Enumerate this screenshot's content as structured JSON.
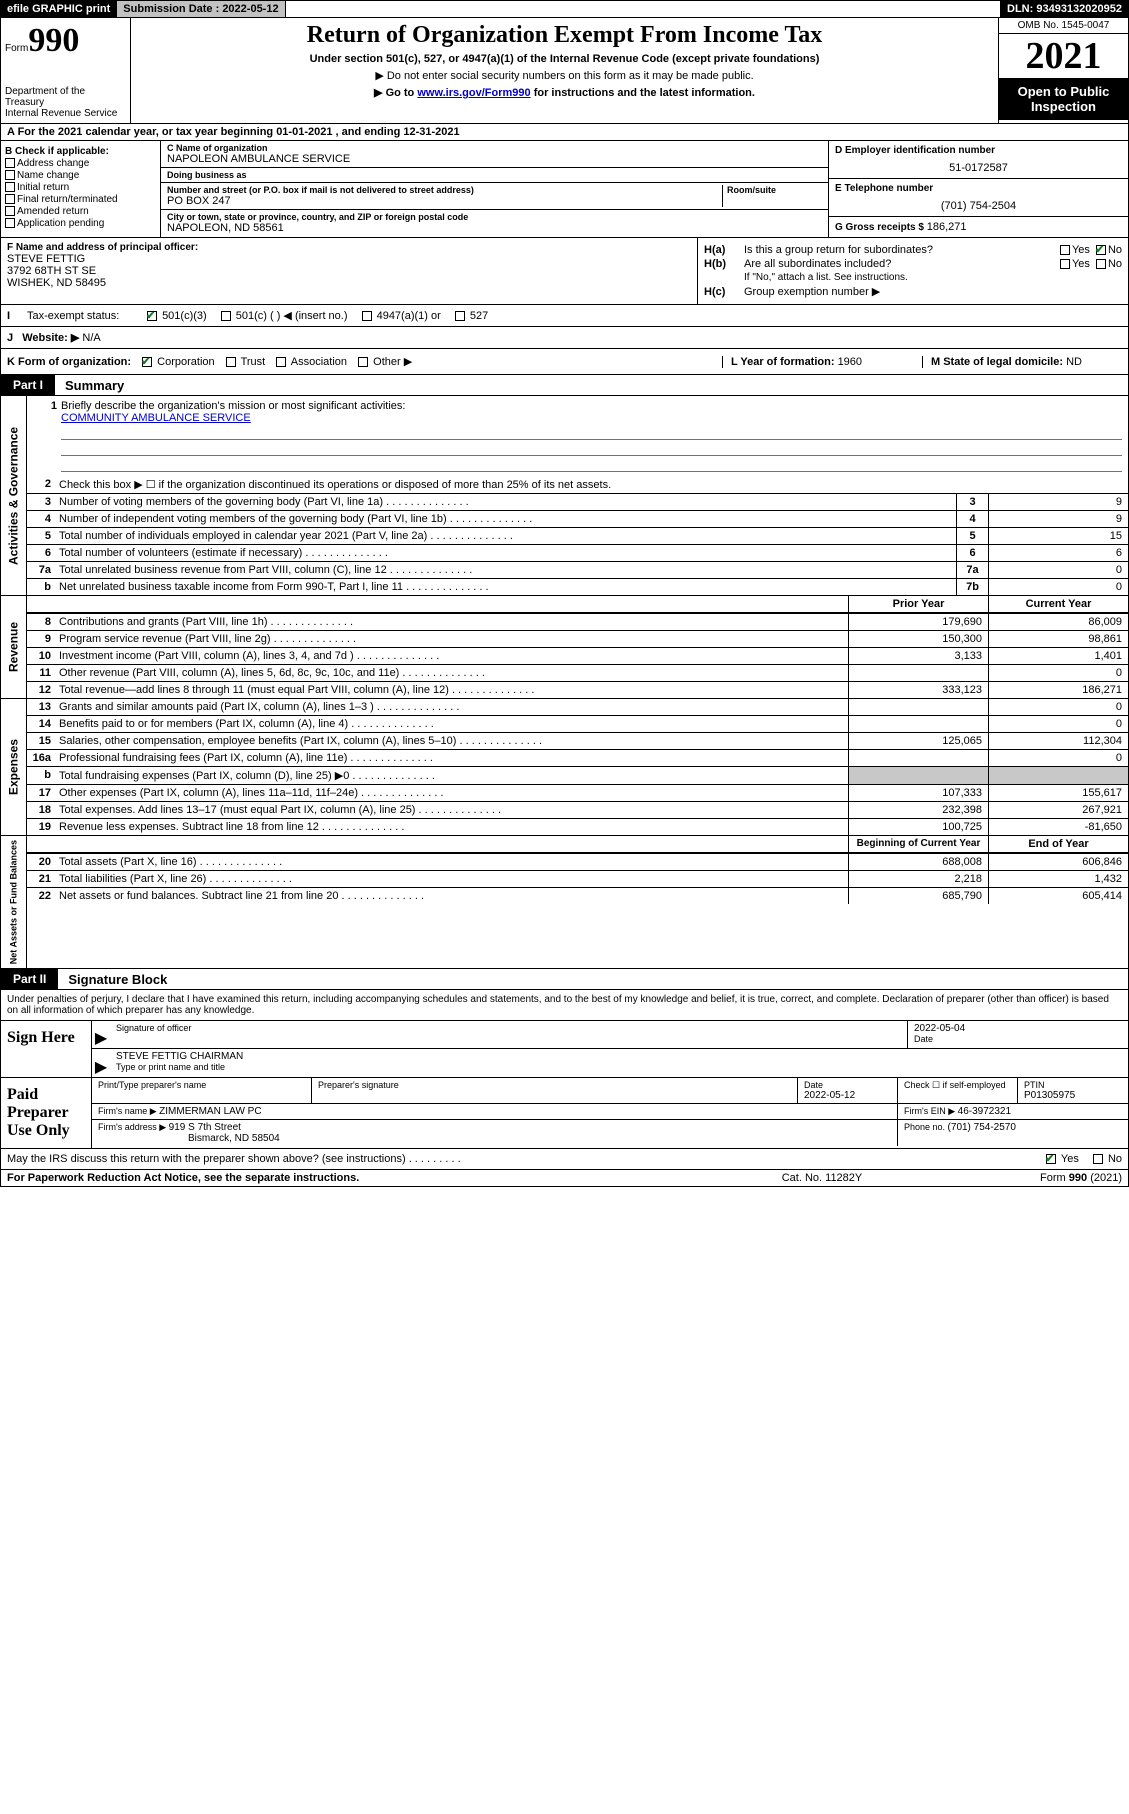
{
  "topbar": {
    "efile": "efile GRAPHIC print",
    "submission_label": "Submission Date : 2022-05-12",
    "dln_label": "DLN: 93493132020952"
  },
  "header": {
    "form_word": "Form",
    "form_num": "990",
    "dept": "Department of the Treasury\nInternal Revenue Service",
    "title": "Return of Organization Exempt From Income Tax",
    "sub1": "Under section 501(c), 527, or 4947(a)(1) of the Internal Revenue Code (except private foundations)",
    "sub2": "▶ Do not enter social security numbers on this form as it may be made public.",
    "sub3_pre": "▶ Go to ",
    "sub3_link": "www.irs.gov/Form990",
    "sub3_post": " for instructions and the latest information.",
    "omb": "OMB No. 1545-0047",
    "year": "2021",
    "inspection": "Open to Public Inspection"
  },
  "line_a": "A For the 2021 calendar year, or tax year beginning 01-01-2021   , and ending 12-31-2021",
  "col_b": {
    "hdr": "B Check if applicable:",
    "items": [
      "Address change",
      "Name change",
      "Initial return",
      "Final return/terminated",
      "Amended return",
      "Application pending"
    ]
  },
  "col_c": {
    "name_lbl": "C Name of organization",
    "name": "NAPOLEON AMBULANCE SERVICE",
    "dba_lbl": "Doing business as",
    "dba": "",
    "addr_lbl": "Number and street (or P.O. box if mail is not delivered to street address)",
    "room_lbl": "Room/suite",
    "addr": "PO BOX 247",
    "city_lbl": "City or town, state or province, country, and ZIP or foreign postal code",
    "city": "NAPOLEON, ND  58561"
  },
  "col_de": {
    "d_lbl": "D Employer identification number",
    "d_val": "51-0172587",
    "e_lbl": "E Telephone number",
    "e_val": "(701) 754-2504",
    "g_lbl": "G Gross receipts $ ",
    "g_val": "186,271"
  },
  "row_f": {
    "lbl": "F  Name and address of principal officer:",
    "name": "STEVE FETTIG",
    "addr1": "3792 68TH ST SE",
    "addr2": "WISHEK, ND  58495"
  },
  "row_h": {
    "ha": "Is this a group return for subordinates?",
    "hb": "Are all subordinates included?",
    "hb_note": "If \"No,\" attach a list. See instructions.",
    "hc": "Group exemption number ▶",
    "yes": "Yes",
    "no": "No"
  },
  "row_i": {
    "lbl": "Tax-exempt status:",
    "opts": [
      "501(c)(3)",
      "501(c) (  ) ◀ (insert no.)",
      "4947(a)(1) or",
      "527"
    ]
  },
  "row_j": {
    "lbl": "Website: ▶ ",
    "val": "N/A"
  },
  "row_k": {
    "lbl": "K Form of organization:",
    "opts": [
      "Corporation",
      "Trust",
      "Association",
      "Other ▶"
    ],
    "l_lbl": "L Year of formation: ",
    "l_val": "1960",
    "m_lbl": "M State of legal domicile: ",
    "m_val": "ND"
  },
  "part1": {
    "tab": "Part I",
    "title": "Summary"
  },
  "mission": {
    "num": "1",
    "lbl": "Briefly describe the organization's mission or most significant activities:",
    "val": "COMMUNITY AMBULANCE SERVICE"
  },
  "gov": {
    "label": "Activities & Governance",
    "lines": [
      {
        "n": "2",
        "t": "Check this box ▶ ☐  if the organization discontinued its operations or disposed of more than 25% of its net assets."
      },
      {
        "n": "3",
        "t": "Number of voting members of the governing body (Part VI, line 1a)",
        "box": "3",
        "v": "9"
      },
      {
        "n": "4",
        "t": "Number of independent voting members of the governing body (Part VI, line 1b)",
        "box": "4",
        "v": "9"
      },
      {
        "n": "5",
        "t": "Total number of individuals employed in calendar year 2021 (Part V, line 2a)",
        "box": "5",
        "v": "15"
      },
      {
        "n": "6",
        "t": "Total number of volunteers (estimate if necessary)",
        "box": "6",
        "v": "6"
      },
      {
        "n": "7a",
        "t": "Total unrelated business revenue from Part VIII, column (C), line 12",
        "box": "7a",
        "v": "0"
      },
      {
        "n": "b",
        "t": "Net unrelated business taxable income from Form 990-T, Part I, line 11",
        "box": "7b",
        "v": "0"
      }
    ]
  },
  "two_col_hdr": {
    "prior": "Prior Year",
    "current": "Current Year"
  },
  "rev": {
    "label": "Revenue",
    "lines": [
      {
        "n": "8",
        "t": "Contributions and grants (Part VIII, line 1h)",
        "p": "179,690",
        "c": "86,009"
      },
      {
        "n": "9",
        "t": "Program service revenue (Part VIII, line 2g)",
        "p": "150,300",
        "c": "98,861"
      },
      {
        "n": "10",
        "t": "Investment income (Part VIII, column (A), lines 3, 4, and 7d )",
        "p": "3,133",
        "c": "1,401"
      },
      {
        "n": "11",
        "t": "Other revenue (Part VIII, column (A), lines 5, 6d, 8c, 9c, 10c, and 11e)",
        "p": "",
        "c": "0"
      },
      {
        "n": "12",
        "t": "Total revenue—add lines 8 through 11 (must equal Part VIII, column (A), line 12)",
        "p": "333,123",
        "c": "186,271"
      }
    ]
  },
  "exp": {
    "label": "Expenses",
    "lines": [
      {
        "n": "13",
        "t": "Grants and similar amounts paid (Part IX, column (A), lines 1–3 )",
        "p": "",
        "c": "0"
      },
      {
        "n": "14",
        "t": "Benefits paid to or for members (Part IX, column (A), line 4)",
        "p": "",
        "c": "0"
      },
      {
        "n": "15",
        "t": "Salaries, other compensation, employee benefits (Part IX, column (A), lines 5–10)",
        "p": "125,065",
        "c": "112,304"
      },
      {
        "n": "16a",
        "t": "Professional fundraising fees (Part IX, column (A), line 11e)",
        "p": "",
        "c": "0"
      },
      {
        "n": "b",
        "t": "Total fundraising expenses (Part IX, column (D), line 25) ▶0",
        "p": "grey",
        "c": "grey"
      },
      {
        "n": "17",
        "t": "Other expenses (Part IX, column (A), lines 11a–11d, 11f–24e)",
        "p": "107,333",
        "c": "155,617"
      },
      {
        "n": "18",
        "t": "Total expenses. Add lines 13–17 (must equal Part IX, column (A), line 25)",
        "p": "232,398",
        "c": "267,921"
      },
      {
        "n": "19",
        "t": "Revenue less expenses. Subtract line 18 from line 12",
        "p": "100,725",
        "c": "-81,650"
      }
    ]
  },
  "na_hdr": {
    "beg": "Beginning of Current Year",
    "end": "End of Year"
  },
  "na": {
    "label": "Net Assets or Fund Balances",
    "lines": [
      {
        "n": "20",
        "t": "Total assets (Part X, line 16)",
        "p": "688,008",
        "c": "606,846"
      },
      {
        "n": "21",
        "t": "Total liabilities (Part X, line 26)",
        "p": "2,218",
        "c": "1,432"
      },
      {
        "n": "22",
        "t": "Net assets or fund balances. Subtract line 21 from line 20",
        "p": "685,790",
        "c": "605,414"
      }
    ]
  },
  "part2": {
    "tab": "Part II",
    "title": "Signature Block"
  },
  "sig": {
    "intro": "Under penalties of perjury, I declare that I have examined this return, including accompanying schedules and statements, and to the best of my knowledge and belief, it is true, correct, and complete. Declaration of preparer (other than officer) is based on all information of which preparer has any knowledge.",
    "sign_here": "Sign Here",
    "sig_of_officer": "Signature of officer",
    "date_lbl": "Date",
    "date_val": "2022-05-04",
    "officer_name": "STEVE FETTIG CHAIRMAN",
    "type_name_lbl": "Type or print name and title",
    "paid": "Paid Preparer Use Only",
    "print_lbl": "Print/Type preparer's name",
    "prep_sig_lbl": "Preparer's signature",
    "prep_date": "2022-05-12",
    "check_self": "Check ☐ if self-employed",
    "ptin_lbl": "PTIN",
    "ptin": "P01305975",
    "firm_name_lbl": "Firm's name    ▶ ",
    "firm_name": "ZIMMERMAN LAW PC",
    "firm_ein_lbl": "Firm's EIN ▶ ",
    "firm_ein": "46-3972321",
    "firm_addr_lbl": "Firm's address ▶ ",
    "firm_addr1": "919 S 7th Street",
    "firm_addr2": "Bismarck, ND  58504",
    "phone_lbl": "Phone no. ",
    "phone": "(701) 754-2570"
  },
  "may": {
    "txt": "May the IRS discuss this return with the preparer shown above? (see instructions)",
    "yes": "Yes",
    "no": "No"
  },
  "foot": {
    "l": "For Paperwork Reduction Act Notice, see the separate instructions.",
    "m": "Cat. No. 11282Y",
    "r": "Form 990 (2021)"
  }
}
